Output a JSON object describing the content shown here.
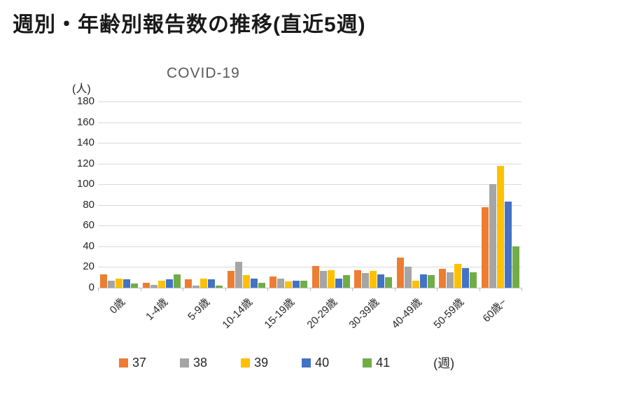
{
  "page": {
    "title": "週別・年齢別報告数の推移(直近5週)"
  },
  "chart_data": {
    "type": "bar",
    "title": "COVID-19",
    "ylabel": "(人)",
    "x_unit_label": "(週)",
    "ylim": [
      0,
      180
    ],
    "ytick_step": 20,
    "grid": true,
    "legend_position": "bottom",
    "categories": [
      "0歳",
      "1-4歳",
      "5-9歳",
      "10-14歳",
      "15-19歳",
      "20-29歳",
      "30-39歳",
      "40-49歳",
      "50-59歳",
      "60歳~"
    ],
    "series": [
      {
        "name": "37",
        "color": "#ED7D31",
        "values": [
          13,
          5,
          8,
          16,
          11,
          21,
          17,
          29,
          18,
          78
        ]
      },
      {
        "name": "38",
        "color": "#A5A5A5",
        "values": [
          7,
          3,
          2,
          25,
          9,
          16,
          14,
          20,
          15,
          100
        ]
      },
      {
        "name": "39",
        "color": "#FFC000",
        "values": [
          9,
          7,
          9,
          12,
          6,
          17,
          16,
          7,
          23,
          118
        ]
      },
      {
        "name": "40",
        "color": "#4472C4",
        "values": [
          8,
          8,
          8,
          9,
          7,
          9,
          13,
          13,
          19,
          83
        ]
      },
      {
        "name": "41",
        "color": "#70AD47",
        "values": [
          4,
          13,
          2,
          5,
          7,
          12,
          10,
          12,
          15,
          40
        ]
      }
    ]
  }
}
